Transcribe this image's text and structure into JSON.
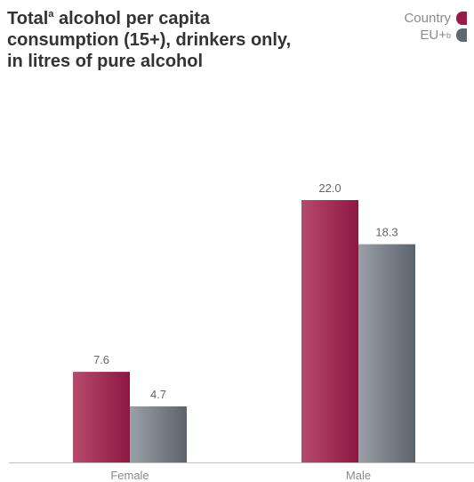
{
  "title": {
    "line1_pre": "Total",
    "line1_sup": "a",
    "line1_post": " alcohol per capita",
    "line2": "consumption (15+), drinkers only,",
    "line3": "in litres of pure alcohol"
  },
  "legend": [
    {
      "label": "Country",
      "sup": "",
      "color": "#9a1b45"
    },
    {
      "label": "EU+",
      "sup": "b",
      "color": "#5f6770"
    }
  ],
  "chart_data": {
    "type": "bar",
    "title": "Total alcohol per capita consumption (15+), drinkers only, in litres of pure alcohol",
    "categories": [
      "Female",
      "Male"
    ],
    "series": [
      {
        "name": "Country",
        "values": [
          7.6,
          22.0
        ],
        "labels": [
          "7.6",
          "22.0"
        ],
        "color_light": "#b64a6c",
        "color_dark": "#8e1742"
      },
      {
        "name": "EU+",
        "values": [
          4.7,
          18.3
        ],
        "labels": [
          "4.7",
          "18.3"
        ],
        "color_light": "#9aa0a7",
        "color_dark": "#5b636c"
      }
    ],
    "ylim": [
      0,
      22.0
    ],
    "grid": false,
    "legend_position": "top-right"
  }
}
